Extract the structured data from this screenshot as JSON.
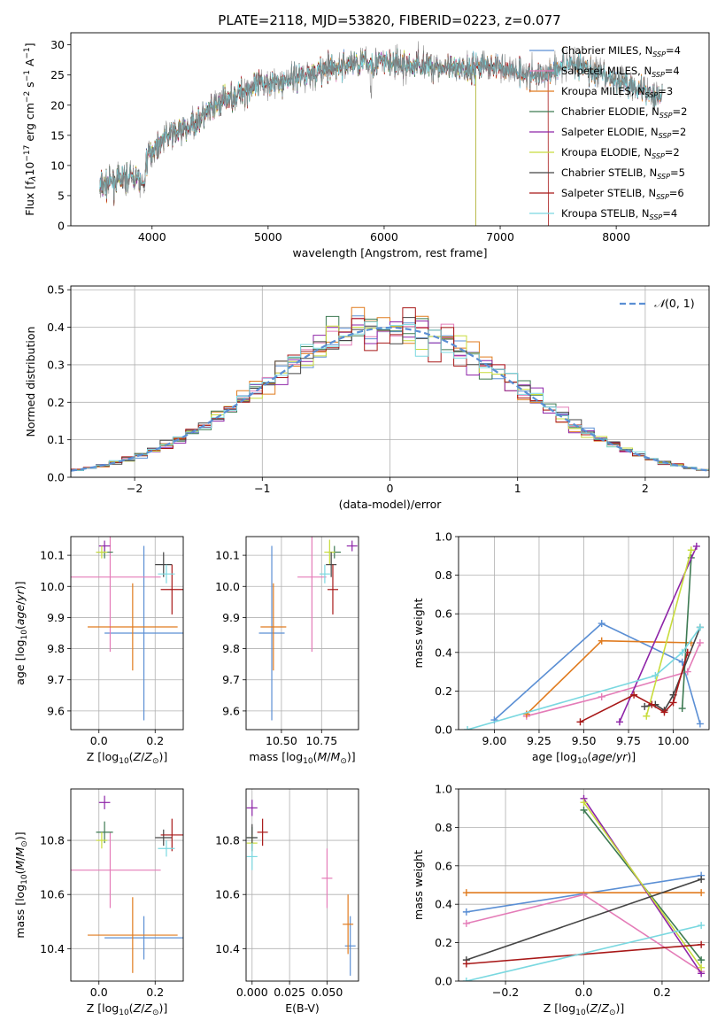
{
  "figure": {
    "title": "PLATE=2118, MJD=53820, FIBERID=0223, z=0.077"
  },
  "legend_models": [
    {
      "name": "Chabrier MILES, N_SSP=4",
      "model": "Chabrier MILES, N",
      "nssp": "=4",
      "color": "#5b8fd4"
    },
    {
      "name": "Salpeter MILES, N_SSP=4",
      "model": "Salpeter MILES, N",
      "nssp": "=4",
      "color": "#e47cb8"
    },
    {
      "name": "Kroupa MILES, N_SSP=3",
      "model": "Kroupa MILES, N",
      "nssp": "=3",
      "color": "#e07b1f"
    },
    {
      "name": "Chabrier ELODIE, N_SSP=2",
      "model": "Chabrier ELODIE, N",
      "nssp": "=2",
      "color": "#3d7a52"
    },
    {
      "name": "Salpeter ELODIE, N_SSP=2",
      "model": "Salpeter ELODIE, N",
      "nssp": "=2",
      "color": "#8e24a8"
    },
    {
      "name": "Kroupa ELODIE, N_SSP=2",
      "model": "Kroupa ELODIE, N",
      "nssp": "=2",
      "color": "#c8dc3c"
    },
    {
      "name": "Chabrier STELIB, N_SSP=5",
      "model": "Chabrier STELIB, N",
      "nssp": "=5",
      "color": "#454545"
    },
    {
      "name": "Salpeter STELIB, N_SSP=6",
      "model": "Salpeter STELIB, N",
      "nssp": "=6",
      "color": "#a81818"
    },
    {
      "name": "Kroupa STELIB, N_SSP=4",
      "model": "Kroupa STELIB, N",
      "nssp": "=4",
      "color": "#7ad8e0"
    }
  ],
  "chart_data": [
    {
      "id": "spectrum",
      "type": "line",
      "title": "PLATE=2118, MJD=53820, FIBERID=0223, z=0.077",
      "xlabel": "wavelength [Angstrom, rest frame]",
      "ylabel": "Flux [f_λ 10^-17 erg cm^-2 s^-1 A^-1]",
      "xlim": [
        3300,
        8800
      ],
      "ylim": [
        0,
        32
      ],
      "xticks": [
        "4000",
        "5000",
        "6000",
        "7000",
        "8000"
      ],
      "yticks": [
        "0",
        "5",
        "10",
        "15",
        "20",
        "25",
        "30"
      ],
      "grid": false,
      "legend_position": "right",
      "continuum": {
        "x": [
          3550,
          3700,
          3850,
          3930,
          3950,
          4000,
          4100,
          4200,
          4300,
          4400,
          4500,
          4600,
          4700,
          4800,
          4900,
          5000,
          5100,
          5200,
          5300,
          5400,
          5500,
          5600,
          5700,
          5800,
          5900,
          6000,
          6100,
          6200,
          6300,
          6400,
          6500,
          6600,
          6700,
          6800,
          6900,
          7000,
          7100,
          7200,
          7300,
          7400,
          7500,
          7600,
          7700,
          7800,
          7900,
          8000,
          8100,
          8200,
          8300,
          8400
        ],
        "values": [
          6.5,
          7.5,
          8.2,
          6.5,
          11.0,
          12.5,
          14.5,
          15.5,
          16.0,
          17.5,
          19.0,
          20.5,
          21.5,
          22.5,
          23.0,
          24.0,
          23.5,
          24.5,
          25.0,
          25.5,
          25.8,
          26.2,
          26.8,
          27.0,
          27.0,
          27.2,
          26.8,
          26.5,
          26.8,
          26.5,
          26.2,
          25.8,
          26.0,
          26.5,
          26.5,
          26.3,
          25.8,
          25.5,
          24.5,
          25.5,
          26.2,
          27.0,
          26.5,
          25.5,
          24.5,
          24.0,
          23.5,
          23.0,
          22.0,
          21.5
        ]
      },
      "series_names": [
        "Chabrier MILES",
        "Salpeter MILES",
        "Kroupa MILES",
        "Chabrier ELODIE",
        "Salpeter ELODIE",
        "Kroupa ELODIE",
        "Chabrier STELIB",
        "Salpeter STELIB",
        "Kroupa STELIB"
      ],
      "notes": [
        "ELODIE models drop to 0 near 6800 A",
        "Salpeter STELIB drops to 0 near 7410 A"
      ]
    },
    {
      "id": "residual-histogram",
      "type": "line",
      "xlabel": "(data-model)/error",
      "ylabel": "Normed distribution",
      "xlim": [
        -2.5,
        2.5
      ],
      "ylim": [
        0,
        0.51
      ],
      "xticks": [
        "−2",
        "−1",
        "0",
        "1",
        "2"
      ],
      "yticks": [
        "0.0",
        "0.1",
        "0.2",
        "0.3",
        "0.4",
        "0.5"
      ],
      "grid": true,
      "legend_position": "top-right",
      "reference_label": "N(0,1)",
      "bin_width": 0.1,
      "bin_start": -2.5,
      "histogram_note": "9 step histograms, one per model, following the normal curve"
    },
    {
      "id": "age-vs-Z",
      "type": "scatter",
      "xlabel": "Z [log10(Z/Z_sun)]",
      "ylabel": "age [log10(age/yr)]",
      "xlim": [
        -0.1,
        0.3
      ],
      "ylim": [
        9.54,
        10.16
      ],
      "xticks": [
        "0.0",
        "0.2"
      ],
      "yticks": [
        "9.6",
        "9.7",
        "9.8",
        "9.9",
        "10.0",
        "10.1"
      ],
      "grid": true,
      "points": [
        {
          "name": "Chabrier MILES",
          "x": 0.16,
          "y": 9.85,
          "xerr": 0.14,
          "yerr": 0.28
        },
        {
          "name": "Salpeter MILES",
          "x": 0.04,
          "y": 10.03,
          "xerr": 0.18,
          "yerr": 0.24
        },
        {
          "name": "Kroupa MILES",
          "x": 0.12,
          "y": 9.87,
          "xerr": 0.16,
          "yerr": 0.14
        },
        {
          "name": "Chabrier ELODIE",
          "x": 0.02,
          "y": 10.11,
          "xerr": 0.03,
          "yerr": 0.02
        },
        {
          "name": "Salpeter ELODIE",
          "x": 0.02,
          "y": 10.13,
          "xerr": 0.02,
          "yerr": 0.015
        },
        {
          "name": "Kroupa ELODIE",
          "x": 0.01,
          "y": 10.11,
          "xerr": 0.02,
          "yerr": 0.02
        },
        {
          "name": "Chabrier STELIB",
          "x": 0.23,
          "y": 10.07,
          "xerr": 0.03,
          "yerr": 0.04
        },
        {
          "name": "Salpeter STELIB",
          "x": 0.26,
          "y": 9.99,
          "xerr": 0.04,
          "yerr": 0.08
        },
        {
          "name": "Kroupa STELIB",
          "x": 0.24,
          "y": 10.04,
          "xerr": 0.03,
          "yerr": 0.03
        }
      ]
    },
    {
      "id": "age-vs-mass",
      "type": "scatter",
      "xlabel": "mass [log10(M/M_sun)]",
      "ylabel": "",
      "xlim": [
        10.28,
        10.98
      ],
      "ylim": [
        9.54,
        10.16
      ],
      "xticks": [
        "10.50",
        "10.75"
      ],
      "yticks": [
        "9.6",
        "9.7",
        "9.8",
        "9.9",
        "10.0",
        "10.1"
      ],
      "grid": true,
      "points": [
        {
          "name": "Chabrier MILES",
          "x": 10.44,
          "y": 9.85,
          "xerr": 0.08,
          "yerr": 0.28
        },
        {
          "name": "Salpeter MILES",
          "x": 10.69,
          "y": 10.03,
          "xerr": 0.09,
          "yerr": 0.24
        },
        {
          "name": "Kroupa MILES",
          "x": 10.45,
          "y": 9.87,
          "xerr": 0.08,
          "yerr": 0.14
        },
        {
          "name": "Chabrier ELODIE",
          "x": 10.83,
          "y": 10.11,
          "xerr": 0.04,
          "yerr": 0.02
        },
        {
          "name": "Salpeter ELODIE",
          "x": 10.94,
          "y": 10.13,
          "xerr": 0.03,
          "yerr": 0.015
        },
        {
          "name": "Kroupa ELODIE",
          "x": 10.8,
          "y": 10.11,
          "xerr": 0.03,
          "yerr": 0.04
        },
        {
          "name": "Chabrier STELIB",
          "x": 10.81,
          "y": 10.07,
          "xerr": 0.03,
          "yerr": 0.04
        },
        {
          "name": "Salpeter STELIB",
          "x": 10.82,
          "y": 9.99,
          "xerr": 0.03,
          "yerr": 0.08
        },
        {
          "name": "Kroupa STELIB",
          "x": 10.77,
          "y": 10.04,
          "xerr": 0.03,
          "yerr": 0.03
        }
      ]
    },
    {
      "id": "mass-weight-vs-age",
      "type": "line",
      "xlabel": "age [log10(age/yr)]",
      "ylabel": "mass weight",
      "xlim": [
        8.8,
        10.2
      ],
      "ylim": [
        0,
        1
      ],
      "xticks": [
        "9.00",
        "9.25",
        "9.50",
        "9.75",
        "10.00"
      ],
      "yticks": [
        "0.0",
        "0.2",
        "0.4",
        "0.6",
        "0.8",
        "1.0"
      ],
      "grid": true,
      "series": [
        {
          "name": "Chabrier MILES",
          "x": [
            9.0,
            9.6,
            10.05,
            10.15
          ],
          "values": [
            0.05,
            0.55,
            0.35,
            0.03
          ]
        },
        {
          "name": "Salpeter MILES",
          "x": [
            9.18,
            9.6,
            10.08,
            10.15
          ],
          "values": [
            0.07,
            0.17,
            0.3,
            0.45
          ]
        },
        {
          "name": "Kroupa MILES",
          "x": [
            9.18,
            9.6,
            10.1
          ],
          "values": [
            0.08,
            0.46,
            0.45
          ]
        },
        {
          "name": "Chabrier ELODIE",
          "x": [
            10.05,
            10.1
          ],
          "values": [
            0.11,
            0.89
          ]
        },
        {
          "name": "Salpeter ELODIE",
          "x": [
            9.7,
            10.13
          ],
          "values": [
            0.04,
            0.95
          ]
        },
        {
          "name": "Kroupa ELODIE",
          "x": [
            9.85,
            10.1
          ],
          "values": [
            0.07,
            0.93
          ]
        },
        {
          "name": "Chabrier STELIB",
          "x": [
            9.84,
            9.9,
            9.95,
            10.0,
            10.15
          ],
          "values": [
            0.12,
            0.13,
            0.1,
            0.18,
            0.53
          ]
        },
        {
          "name": "Salpeter STELIB",
          "x": [
            9.48,
            9.78,
            9.88,
            9.95,
            10.0,
            10.08
          ],
          "values": [
            0.04,
            0.18,
            0.13,
            0.09,
            0.14,
            0.4
          ]
        },
        {
          "name": "Kroupa STELIB",
          "x": [
            8.85,
            9.9,
            10.05,
            10.15
          ],
          "values": [
            0.0,
            0.28,
            0.4,
            0.53
          ]
        }
      ]
    },
    {
      "id": "mass-vs-Z",
      "type": "scatter",
      "xlabel": "Z [log10(Z/Z_sun)]",
      "ylabel": "mass [log10(M/M_sun)]",
      "xlim": [
        -0.1,
        0.3
      ],
      "ylim": [
        10.28,
        10.99
      ],
      "xticks": [
        "0.0",
        "0.2"
      ],
      "yticks": [
        "10.4",
        "10.6",
        "10.8"
      ],
      "grid": true,
      "points": [
        {
          "name": "Chabrier MILES",
          "x": 0.16,
          "y": 10.44,
          "xerr": 0.14,
          "yerr": 0.08
        },
        {
          "name": "Salpeter MILES",
          "x": 0.04,
          "y": 10.69,
          "xerr": 0.18,
          "yerr": 0.14
        },
        {
          "name": "Kroupa MILES",
          "x": 0.12,
          "y": 10.45,
          "xerr": 0.16,
          "yerr": 0.14
        },
        {
          "name": "Chabrier ELODIE",
          "x": 0.02,
          "y": 10.83,
          "xerr": 0.03,
          "yerr": 0.04
        },
        {
          "name": "Salpeter ELODIE",
          "x": 0.02,
          "y": 10.94,
          "xerr": 0.02,
          "yerr": 0.025
        },
        {
          "name": "Kroupa ELODIE",
          "x": 0.01,
          "y": 10.8,
          "xerr": 0.02,
          "yerr": 0.03
        },
        {
          "name": "Chabrier STELIB",
          "x": 0.23,
          "y": 10.81,
          "xerr": 0.03,
          "yerr": 0.03
        },
        {
          "name": "Salpeter STELIB",
          "x": 0.26,
          "y": 10.82,
          "xerr": 0.04,
          "yerr": 0.06
        },
        {
          "name": "Kroupa STELIB",
          "x": 0.24,
          "y": 10.77,
          "xerr": 0.03,
          "yerr": 0.03
        }
      ]
    },
    {
      "id": "mass-vs-ebv",
      "type": "scatter",
      "xlabel": "E(B-V)",
      "ylabel": "",
      "xlim": [
        -0.004,
        0.071
      ],
      "ylim": [
        10.28,
        10.99
      ],
      "xticks": [
        "0.000",
        "0.025",
        "0.050"
      ],
      "yticks": [
        "10.4",
        "10.6",
        "10.8"
      ],
      "grid": true,
      "points": [
        {
          "name": "Chabrier MILES",
          "x": 0.0655,
          "y": 10.41,
          "xerr": 0.0,
          "yerr": 0.11
        },
        {
          "name": "Salpeter MILES",
          "x": 0.05,
          "y": 10.66,
          "xerr": 0.0,
          "yerr": 0.11
        },
        {
          "name": "Kroupa MILES",
          "x": 0.064,
          "y": 10.49,
          "xerr": 0.0,
          "yerr": 0.11
        },
        {
          "name": "Chabrier ELODIE",
          "x": 0.0,
          "y": 10.81,
          "xerr": 0.0,
          "yerr": 0.04
        },
        {
          "name": "Salpeter ELODIE",
          "x": 0.0,
          "y": 10.92,
          "xerr": 0.0,
          "yerr": 0.03
        },
        {
          "name": "Kroupa ELODIE",
          "x": 0.0,
          "y": 10.79,
          "xerr": 0.0,
          "yerr": 0.03
        },
        {
          "name": "Chabrier STELIB",
          "x": 0.0,
          "y": 10.81,
          "xerr": 0.0,
          "yerr": 0.05
        },
        {
          "name": "Salpeter STELIB",
          "x": 0.007,
          "y": 10.83,
          "xerr": 0.0,
          "yerr": 0.05
        },
        {
          "name": "Kroupa STELIB",
          "x": 0.0,
          "y": 10.74,
          "xerr": 0.0,
          "yerr": 0.05
        }
      ]
    },
    {
      "id": "mass-weight-vs-Z",
      "type": "line",
      "xlabel": "Z [log10(Z/Z_sun)]",
      "ylabel": "mass weight",
      "xlim": [
        -0.32,
        0.32
      ],
      "ylim": [
        0,
        1
      ],
      "xticks": [
        "−0.2",
        "0.0",
        "0.2"
      ],
      "yticks": [
        "0.0",
        "0.2",
        "0.4",
        "0.6",
        "0.8",
        "1.0"
      ],
      "grid": true,
      "series": [
        {
          "name": "Chabrier MILES",
          "x": [
            -0.3,
            0.3
          ],
          "values": [
            0.36,
            0.55
          ]
        },
        {
          "name": "Salpeter MILES",
          "x": [
            -0.3,
            0.0,
            0.3
          ],
          "values": [
            0.3,
            0.45,
            0.05
          ]
        },
        {
          "name": "Kroupa MILES",
          "x": [
            -0.3,
            0.3
          ],
          "values": [
            0.46,
            0.46
          ]
        },
        {
          "name": "Chabrier ELODIE",
          "x": [
            0.0,
            0.3
          ],
          "values": [
            0.89,
            0.11
          ]
        },
        {
          "name": "Salpeter ELODIE",
          "x": [
            0.0,
            0.3
          ],
          "values": [
            0.95,
            0.04
          ]
        },
        {
          "name": "Kroupa ELODIE",
          "x": [
            0.0,
            0.3
          ],
          "values": [
            0.93,
            0.07
          ]
        },
        {
          "name": "Chabrier STELIB",
          "x": [
            -0.3,
            0.3
          ],
          "values": [
            0.11,
            0.53
          ]
        },
        {
          "name": "Salpeter STELIB",
          "x": [
            -0.3,
            0.3
          ],
          "values": [
            0.09,
            0.19
          ]
        },
        {
          "name": "Kroupa STELIB",
          "x": [
            -0.3,
            0.3
          ],
          "values": [
            0.0,
            0.29
          ]
        }
      ]
    }
  ]
}
